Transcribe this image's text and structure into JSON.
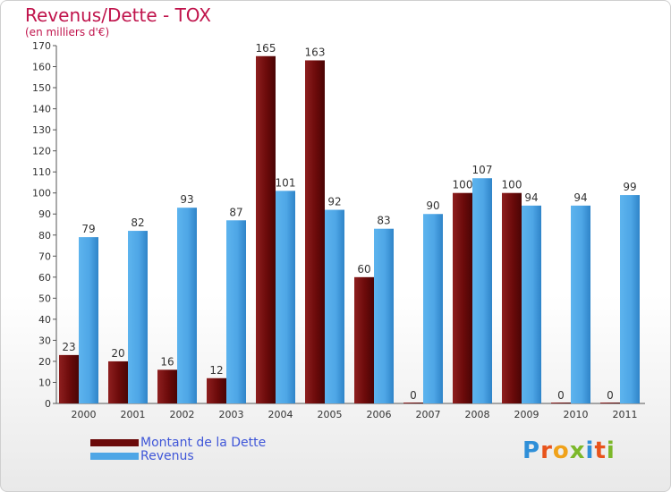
{
  "chart_data": {
    "type": "bar",
    "title": "Revenus/Dette - TOX",
    "subtitle": "(en milliers d'€)",
    "categories": [
      "2000",
      "2001",
      "2002",
      "2003",
      "2004",
      "2005",
      "2006",
      "2007",
      "2008",
      "2009",
      "2010",
      "2011"
    ],
    "series": [
      {
        "name": "Montant de la Dette",
        "color": "#6b0a0a",
        "values": [
          23,
          20,
          16,
          12,
          165,
          163,
          60,
          0,
          100,
          100,
          0,
          0
        ]
      },
      {
        "name": "Revenus",
        "color": "#4ea6e6",
        "values": [
          79,
          82,
          93,
          87,
          101,
          92,
          83,
          90,
          107,
          94,
          94,
          99
        ]
      }
    ],
    "ylim": [
      0,
      170
    ],
    "yticks": [
      0,
      10,
      20,
      30,
      40,
      50,
      60,
      70,
      80,
      90,
      100,
      110,
      120,
      130,
      140,
      150,
      160,
      170
    ],
    "grid": false,
    "legend": "bottom-left"
  },
  "legend": {
    "debt_label": "Montant de la Dette",
    "revenue_label": "Revenus"
  },
  "logo": {
    "letters": [
      "P",
      "r",
      "o",
      "x",
      "i",
      "t",
      "i"
    ],
    "colors": [
      "#2f8fd8",
      "#e8541c",
      "#f0a21a",
      "#7cb82a",
      "#2f8fd8",
      "#e8541c",
      "#7cb82a"
    ]
  }
}
